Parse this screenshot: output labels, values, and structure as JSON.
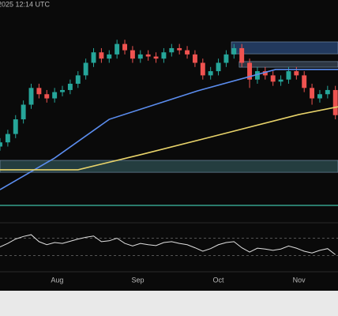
{
  "chart_data": {
    "type": "candlestick",
    "timestamp": "2025 12:14 UTC",
    "up_color": "#26a69a",
    "down_color": "#ef5350",
    "x": [
      0,
      3,
      6,
      9,
      12,
      15,
      18,
      21,
      24,
      27,
      30,
      33,
      36,
      39,
      42,
      45,
      48,
      51,
      54,
      57,
      60,
      63,
      66,
      69,
      72,
      75,
      78,
      81,
      84,
      87,
      90,
      93,
      96,
      99,
      102,
      105,
      108,
      111,
      114,
      117,
      120,
      123,
      126,
      129
    ],
    "open": [
      30,
      32,
      36,
      43,
      50,
      58,
      55,
      53,
      56,
      57,
      60,
      64,
      70,
      75,
      72,
      74,
      79,
      76,
      72,
      74,
      73,
      72,
      75,
      77,
      76,
      74,
      70,
      64,
      66,
      70,
      74,
      77,
      70,
      62,
      66,
      64,
      61,
      62,
      66,
      64,
      58,
      53,
      55,
      57
    ],
    "high": [
      34,
      38,
      45,
      52,
      60,
      60,
      57,
      58,
      59,
      62,
      66,
      72,
      77,
      77,
      76,
      81,
      81,
      78,
      76,
      76,
      75,
      77,
      79,
      79,
      78,
      76,
      72,
      68,
      72,
      76,
      79,
      79,
      72,
      68,
      68,
      66,
      64,
      68,
      68,
      66,
      60,
      57,
      59,
      59
    ],
    "low": [
      28,
      30,
      34,
      41,
      48,
      53,
      51,
      51,
      54,
      55,
      58,
      62,
      68,
      70,
      70,
      72,
      74,
      70,
      70,
      71,
      70,
      70,
      73,
      74,
      72,
      68,
      62,
      62,
      64,
      68,
      72,
      68,
      58,
      60,
      62,
      59,
      59,
      60,
      62,
      56,
      50,
      51,
      53,
      43
    ],
    "close": [
      32,
      36,
      43,
      50,
      58,
      55,
      53,
      56,
      57,
      60,
      64,
      70,
      75,
      72,
      74,
      79,
      76,
      72,
      74,
      73,
      72,
      75,
      77,
      76,
      74,
      70,
      64,
      66,
      70,
      74,
      77,
      70,
      62,
      66,
      64,
      61,
      62,
      66,
      64,
      58,
      53,
      55,
      57,
      45
    ],
    "xlim": [
      0,
      130
    ],
    "ylim": [
      0,
      100
    ],
    "xticks": [
      {
        "value": 22,
        "label": "Aug"
      },
      {
        "value": 53,
        "label": "Sep"
      },
      {
        "value": 84,
        "label": "Oct"
      },
      {
        "value": 115,
        "label": "Nov"
      }
    ],
    "moving_averages": [
      {
        "color": "#5b8def",
        "x": [
          0,
          21,
          42,
          76,
          106,
          130
        ],
        "values": [
          9.4,
          24.5,
          43,
          56.6,
          66.8,
          66.8
        ]
      },
      {
        "color": "#e8d36a",
        "x": [
          0,
          30,
          55,
          85,
          115,
          130
        ],
        "values": [
          18.9,
          18.9,
          26.4,
          35.8,
          45.3,
          49
        ]
      }
    ],
    "zones": [
      {
        "x_start": 89,
        "range": [
          74.3,
          80
        ],
        "color": "#2b4a7a"
      },
      {
        "x_start": 92,
        "range": [
          67.9,
          70.6
        ],
        "color": "#3a4656"
      },
      {
        "x_start": 0,
        "range": [
          17.7,
          23.4
        ],
        "color": "#2e4f52"
      }
    ],
    "levels": [
      {
        "value": 1.9,
        "color": "#3fbfa8"
      }
    ],
    "rsi": {
      "color": "#e0e0e0",
      "ylim": [
        0,
        100
      ],
      "levels": [
        70,
        30
      ],
      "values": [
        50,
        58,
        68,
        74,
        78,
        62,
        55,
        60,
        58,
        63,
        68,
        72,
        75,
        62,
        64,
        70,
        58,
        52,
        58,
        55,
        53,
        60,
        62,
        58,
        55,
        48,
        40,
        46,
        55,
        60,
        62,
        48,
        38,
        47,
        45,
        42,
        45,
        52,
        47,
        40,
        36,
        42,
        46,
        32
      ]
    }
  }
}
